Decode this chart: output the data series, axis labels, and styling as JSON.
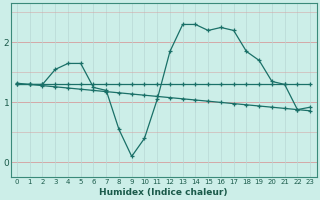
{
  "title": "",
  "xlabel": "Humidex (Indice chaleur)",
  "ylabel": "",
  "bg_color": "#cceee8",
  "grid_color_h": "#d4a8a8",
  "grid_color_v": "#b8d8d4",
  "line_color": "#1a7068",
  "x_ticks": [
    0,
    1,
    2,
    3,
    4,
    5,
    6,
    7,
    8,
    9,
    10,
    11,
    12,
    13,
    14,
    15,
    16,
    17,
    18,
    19,
    20,
    21,
    22,
    23
  ],
  "y_ticks": [
    0,
    1,
    2
  ],
  "ylim": [
    -0.25,
    2.65
  ],
  "xlim": [
    -0.5,
    23.5
  ],
  "line1_y": [
    1.3,
    1.3,
    1.3,
    1.55,
    1.65,
    1.65,
    1.25,
    1.2,
    0.55,
    0.1,
    0.4,
    1.05,
    1.85,
    2.3,
    2.3,
    2.2,
    2.25,
    2.2,
    1.85,
    1.7,
    1.35,
    1.3,
    0.88,
    0.92
  ],
  "line2_y": [
    1.3,
    1.3,
    1.3,
    1.3,
    1.3,
    1.3,
    1.3,
    1.3,
    1.3,
    1.3,
    1.3,
    1.3,
    1.3,
    1.3,
    1.3,
    1.3,
    1.3,
    1.3,
    1.3,
    1.3,
    1.3,
    1.3,
    1.3,
    1.3
  ],
  "line3_y": [
    1.32,
    1.3,
    1.28,
    1.26,
    1.24,
    1.22,
    1.2,
    1.18,
    1.16,
    1.14,
    1.12,
    1.1,
    1.08,
    1.06,
    1.04,
    1.02,
    1.0,
    0.98,
    0.96,
    0.94,
    0.92,
    0.9,
    0.88,
    0.86
  ]
}
